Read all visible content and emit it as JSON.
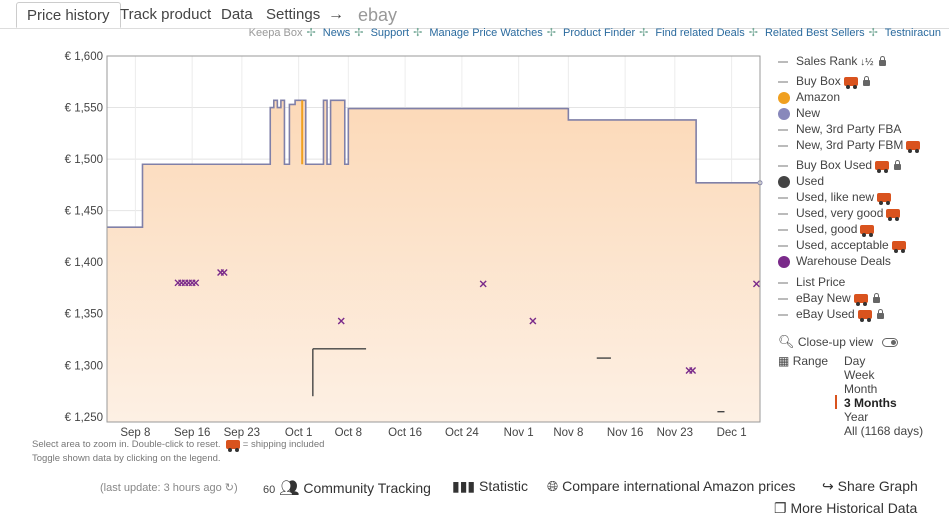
{
  "tabs": [
    {
      "label": "Price history",
      "active": true
    },
    {
      "label": "Track product"
    },
    {
      "label": "Data"
    },
    {
      "label": "Settings"
    }
  ],
  "arrow": "→",
  "ebay_label": "ebay",
  "links": [
    "Keepa Box",
    "News",
    "Support",
    "Manage Price Watches",
    "Product Finder",
    "Find related Deals",
    "Related Best Sellers",
    "Testniracun"
  ],
  "hints": {
    "line1a": "Select area to zoom in. Double-click to reset.",
    "line1b": "= shipping included",
    "line2": "Toggle shown data by clicking on the legend."
  },
  "legend": [
    {
      "label": "Sales Rank",
      "kind": "dash",
      "sort_icon": "↓½",
      "lock": true
    },
    {
      "label": "Buy Box",
      "kind": "dash",
      "truck": true,
      "lock": true
    },
    {
      "label": "Amazon",
      "kind": "dot",
      "color": "#f0a020"
    },
    {
      "label": "New",
      "kind": "dot",
      "color": "#8888bb"
    },
    {
      "label": "New, 3rd Party FBA",
      "kind": "dash"
    },
    {
      "label": "New, 3rd Party FBM",
      "kind": "dash",
      "truck": true
    },
    {
      "label": "Buy Box Used",
      "kind": "dash",
      "truck": true,
      "lock": true
    },
    {
      "label": "Used",
      "kind": "dot",
      "color": "#444444"
    },
    {
      "label": "Used, like new",
      "kind": "dash",
      "truck": true
    },
    {
      "label": "Used, very good",
      "kind": "dash",
      "truck": true
    },
    {
      "label": "Used, good",
      "kind": "dash",
      "truck": true
    },
    {
      "label": "Used, acceptable",
      "kind": "dash",
      "truck": true
    },
    {
      "label": "Warehouse Deals",
      "kind": "dot",
      "color": "#7a2a8a"
    },
    {
      "label": "List Price",
      "kind": "dash"
    },
    {
      "label": "eBay New",
      "kind": "dash",
      "truck": true,
      "lock": true
    },
    {
      "label": "eBay Used",
      "kind": "dash",
      "truck": true,
      "lock": true
    }
  ],
  "closeup_label": "Close-up view",
  "range_label": "Range",
  "range_options": [
    "Day",
    "Week",
    "Month",
    "3 Months",
    "Year",
    "All (1168 days)"
  ],
  "range_selected": "3 Months",
  "bottom": {
    "last_update": "(last update: 3 hours ago",
    "tracking_count": "60",
    "community": "Community Tracking",
    "statistic": "Statistic",
    "compare": "Compare international Amazon prices",
    "share": "Share Graph",
    "more": "More Historical Data"
  },
  "colors": {
    "new_line": "#8080a8",
    "amazon": "#f0a020",
    "warehouse": "#7a2a8a",
    "fill_top": "#fcd9b8",
    "fill_bottom": "#fdf0e4"
  },
  "chart_data": {
    "type": "line",
    "y_tick_labels": [
      "€ 1,600",
      "€ 1,550",
      "€ 1,500",
      "€ 1,450",
      "€ 1,400",
      "€ 1,350",
      "€ 1,300",
      "€ 1,250"
    ],
    "y_ticks": [
      1600,
      1550,
      1500,
      1450,
      1400,
      1350,
      1300,
      1250
    ],
    "ylim": [
      1245,
      1600
    ],
    "x_tick_labels": [
      "Sep 8",
      "Sep 16",
      "Sep 23",
      "Oct 1",
      "Oct 8",
      "Oct 16",
      "Oct 24",
      "Nov 1",
      "Nov 8",
      "Nov 16",
      "Nov 23",
      "Dec 1"
    ],
    "x_ticks": [
      8,
      16,
      23,
      31,
      38,
      46,
      54,
      62,
      69,
      77,
      84,
      92
    ],
    "x_axis_note": "day number counted from Sep 0",
    "xlim": [
      4,
      96
    ],
    "series": [
      {
        "name": "New",
        "color": "#8080a8",
        "filled": true,
        "points": [
          [
            4,
            1434
          ],
          [
            9,
            1434
          ],
          [
            9,
            1495
          ],
          [
            27,
            1495
          ],
          [
            27,
            1550
          ],
          [
            27.5,
            1550
          ],
          [
            27.5,
            1557
          ],
          [
            28,
            1557
          ],
          [
            28,
            1550
          ],
          [
            28.5,
            1550
          ],
          [
            28.5,
            1557
          ],
          [
            29,
            1557
          ],
          [
            29,
            1495
          ],
          [
            29.7,
            1495
          ],
          [
            29.7,
            1553
          ],
          [
            30.5,
            1553
          ],
          [
            30.5,
            1557
          ],
          [
            32,
            1557
          ],
          [
            32,
            1495
          ],
          [
            34.5,
            1495
          ],
          [
            34.5,
            1557
          ],
          [
            35,
            1557
          ],
          [
            35,
            1495
          ],
          [
            35.5,
            1495
          ],
          [
            35.5,
            1557
          ],
          [
            37.5,
            1557
          ],
          [
            37.5,
            1495
          ],
          [
            38,
            1495
          ],
          [
            38,
            1549
          ],
          [
            69,
            1549
          ],
          [
            69,
            1538
          ],
          [
            87,
            1538
          ],
          [
            87,
            1477
          ],
          [
            96,
            1477
          ]
        ]
      },
      {
        "name": "Amazon",
        "color": "#f0a020",
        "points": [
          [
            31.5,
            1557
          ],
          [
            31.5,
            1495
          ]
        ]
      },
      {
        "name": "Used",
        "color": "#444444",
        "segments": [
          [
            [
              33,
              1316
            ],
            [
              40.5,
              1316
            ]
          ],
          [
            [
              33,
              1316
            ],
            [
              33,
              1270
            ]
          ],
          [
            [
              73,
              1307
            ],
            [
              75,
              1307
            ]
          ],
          [
            [
              90,
              1255
            ],
            [
              91,
              1255
            ]
          ]
        ]
      }
    ],
    "warehouse_deals": [
      [
        14,
        1380
      ],
      [
        14.5,
        1380
      ],
      [
        15,
        1380
      ],
      [
        15.5,
        1380
      ],
      [
        16,
        1380
      ],
      [
        16.5,
        1380
      ],
      [
        20,
        1390
      ],
      [
        20.5,
        1390
      ],
      [
        37,
        1343
      ],
      [
        57,
        1379
      ],
      [
        64,
        1343
      ],
      [
        86,
        1295
      ],
      [
        86.5,
        1295
      ],
      [
        95.5,
        1379
      ]
    ]
  }
}
